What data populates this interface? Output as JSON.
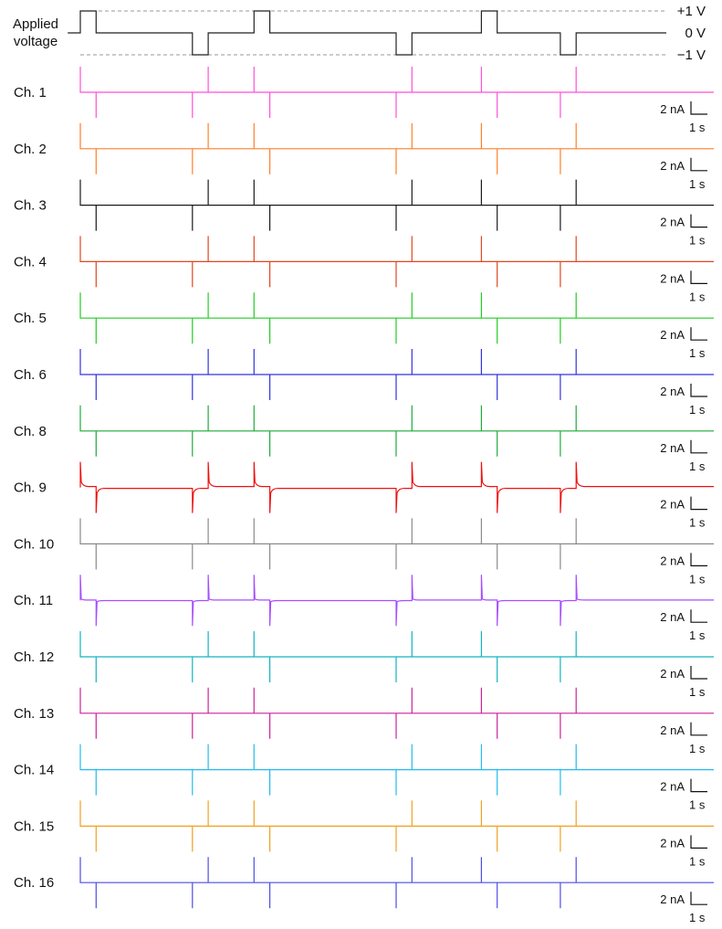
{
  "chart_data": {
    "type": "line",
    "voltage_trace": {
      "label": "Applied\nvoltage",
      "levels": [
        "+1 V",
        "0 V",
        "−1 V"
      ],
      "pulses": [
        {
          "start": 0.0,
          "end": 0.5,
          "level": 1
        },
        {
          "start": 3.55,
          "end": 4.05,
          "level": -1
        },
        {
          "start": 5.5,
          "end": 6.0,
          "level": 1
        },
        {
          "start": 10.0,
          "end": 10.5,
          "level": -1
        },
        {
          "start": 12.7,
          "end": 13.2,
          "level": 1
        },
        {
          "start": 15.2,
          "end": 15.7,
          "level": -1
        }
      ]
    },
    "time_range": [
      -0.4,
      18.5
    ],
    "scale_bar": {
      "current": "2 nA",
      "time": "1 s"
    },
    "channels": [
      {
        "name": "Ch. 1",
        "color": "#ff4fd8",
        "drift": false
      },
      {
        "name": "Ch. 2",
        "color": "#ff7f2a",
        "drift": false
      },
      {
        "name": "Ch. 3",
        "color": "#1a1a1a",
        "drift": false
      },
      {
        "name": "Ch. 4",
        "color": "#e0461e",
        "drift": false
      },
      {
        "name": "Ch. 5",
        "color": "#22cc22",
        "drift": false
      },
      {
        "name": "Ch. 6",
        "color": "#3333dd",
        "drift": false
      },
      {
        "name": "Ch. 8",
        "color": "#1faa3a",
        "drift": false
      },
      {
        "name": "Ch. 9",
        "color": "#ee1111",
        "drift": "strong"
      },
      {
        "name": "Ch. 10",
        "color": "#8a8a8a",
        "drift": false
      },
      {
        "name": "Ch. 11",
        "color": "#a64dff",
        "drift": "weak"
      },
      {
        "name": "Ch. 12",
        "color": "#12b3c2",
        "drift": false
      },
      {
        "name": "Ch. 13",
        "color": "#cc2299",
        "drift": false
      },
      {
        "name": "Ch. 14",
        "color": "#22bbee",
        "drift": false
      },
      {
        "name": "Ch. 15",
        "color": "#f0a020",
        "drift": false
      },
      {
        "name": "Ch. 16",
        "color": "#4d4de6",
        "drift": false
      }
    ]
  }
}
